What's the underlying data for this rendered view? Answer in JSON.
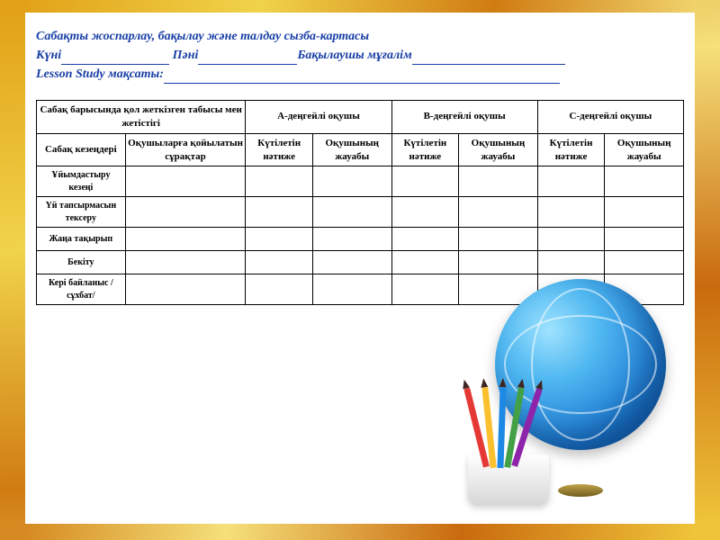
{
  "header": {
    "title": "Сабақты жоспарлау, бақылау және талдау сызба-картасы",
    "date_label": "Күні",
    "subject_label": "Пәні",
    "observer_label": "Бақылаушы мұғалім",
    "goal_label": "Lesson Study мақсаты:",
    "blank_widths": {
      "date": 120,
      "subject": 110,
      "observer": 170,
      "goal": 440
    }
  },
  "table": {
    "top_headers": {
      "col1": "Сабақ барысында қол жеткізген табысы мен жетістігі",
      "levels": [
        "А-деңгейлі оқушы",
        "В-деңгейлі оқушы",
        "С-деңгейлі оқушы"
      ]
    },
    "sub_headers": {
      "stage": "Сабақ кезеңдері",
      "questions": "Оқушыларға қойылатын сұрақтар",
      "expected": "Күтілетін нәтиже",
      "answer": "Оқушының жауабы"
    },
    "rows": [
      "Ұйымдастыру кезеңі",
      "Үй тапсырмасын тексеру",
      "Жаңа тақырып",
      "Бекіту",
      "Кері байланыс /сұхбат/"
    ],
    "column_count": 8,
    "border_color": "#000000",
    "header_fontsize": 11,
    "row_fontsize": 10
  },
  "colors": {
    "header_text": "#173ea5",
    "table_text": "#000000",
    "background": "#ffffff",
    "frame_gradient": [
      "#e2a218",
      "#f0d34a",
      "#d07c12",
      "#f5e07a",
      "#c96a0e",
      "#efc43a"
    ]
  }
}
